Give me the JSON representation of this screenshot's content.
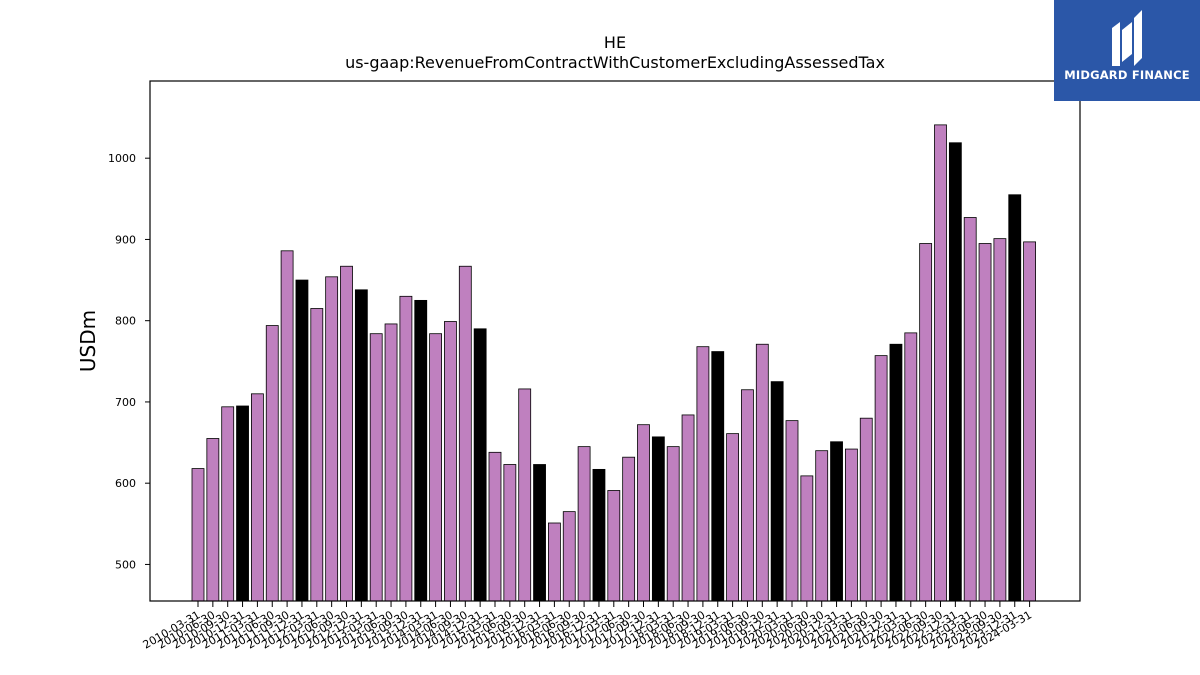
{
  "brand": {
    "name": "MIDGARD FINANCE",
    "bg_color": "#2b57a8"
  },
  "chart_data": {
    "type": "bar",
    "title": "HE",
    "subtitle": "us-gaap:RevenueFromContractWithCustomerExcludingAssessedTax",
    "ylabel": "USDm",
    "xlabel": "",
    "ylim": [
      455,
      1095
    ],
    "yticks": [
      500,
      600,
      700,
      800,
      900,
      1000
    ],
    "grid": false,
    "colors": {
      "quarter": "#bf80bf",
      "annual": "#000000",
      "edge": "#000000"
    },
    "categories": [
      "2010-03-31",
      "2010-06-30",
      "2010-09-30",
      "2010-12-31",
      "2011-03-31",
      "2011-06-30",
      "2011-09-30",
      "2011-12-31",
      "2012-03-31",
      "2012-06-30",
      "2012-09-30",
      "2012-12-31",
      "2013-03-31",
      "2013-06-30",
      "2013-09-30",
      "2013-12-31",
      "2014-03-31",
      "2014-06-30",
      "2014-09-30",
      "2014-12-31",
      "2015-03-31",
      "2015-06-30",
      "2015-09-30",
      "2015-12-31",
      "2016-03-31",
      "2016-06-30",
      "2016-09-30",
      "2016-12-31",
      "2017-03-31",
      "2017-06-30",
      "2017-09-30",
      "2017-12-31",
      "2018-03-31",
      "2018-06-30",
      "2018-09-30",
      "2018-12-31",
      "2019-03-31",
      "2019-06-30",
      "2019-09-30",
      "2019-12-31",
      "2020-03-31",
      "2020-06-30",
      "2020-09-30",
      "2020-12-31",
      "2021-03-31",
      "2021-06-30",
      "2021-09-30",
      "2021-12-31",
      "2022-03-31",
      "2022-06-30",
      "2022-09-30",
      "2022-12-31",
      "2023-03-31",
      "2023-06-30",
      "2023-09-30",
      "2023-12-31",
      "2024-03-31"
    ],
    "values": [
      618,
      655,
      694,
      695,
      710,
      794,
      886,
      850,
      815,
      854,
      867,
      838,
      784,
      796,
      830,
      825,
      784,
      799,
      867,
      790,
      638,
      623,
      716,
      623,
      551,
      565,
      645,
      617,
      591,
      632,
      672,
      657,
      645,
      684,
      768,
      762,
      661,
      715,
      771,
      725,
      677,
      609,
      640,
      651,
      642,
      680,
      757,
      771,
      785,
      895,
      1041,
      1019,
      927,
      895,
      901,
      955,
      897
    ],
    "highlight": [
      false,
      false,
      false,
      true,
      false,
      false,
      false,
      true,
      false,
      false,
      false,
      true,
      false,
      false,
      false,
      true,
      false,
      false,
      false,
      true,
      false,
      false,
      false,
      true,
      false,
      false,
      false,
      true,
      false,
      false,
      false,
      true,
      false,
      false,
      false,
      true,
      false,
      false,
      false,
      true,
      false,
      false,
      false,
      true,
      false,
      false,
      false,
      true,
      false,
      false,
      false,
      true,
      false,
      false,
      false,
      true,
      false
    ]
  }
}
